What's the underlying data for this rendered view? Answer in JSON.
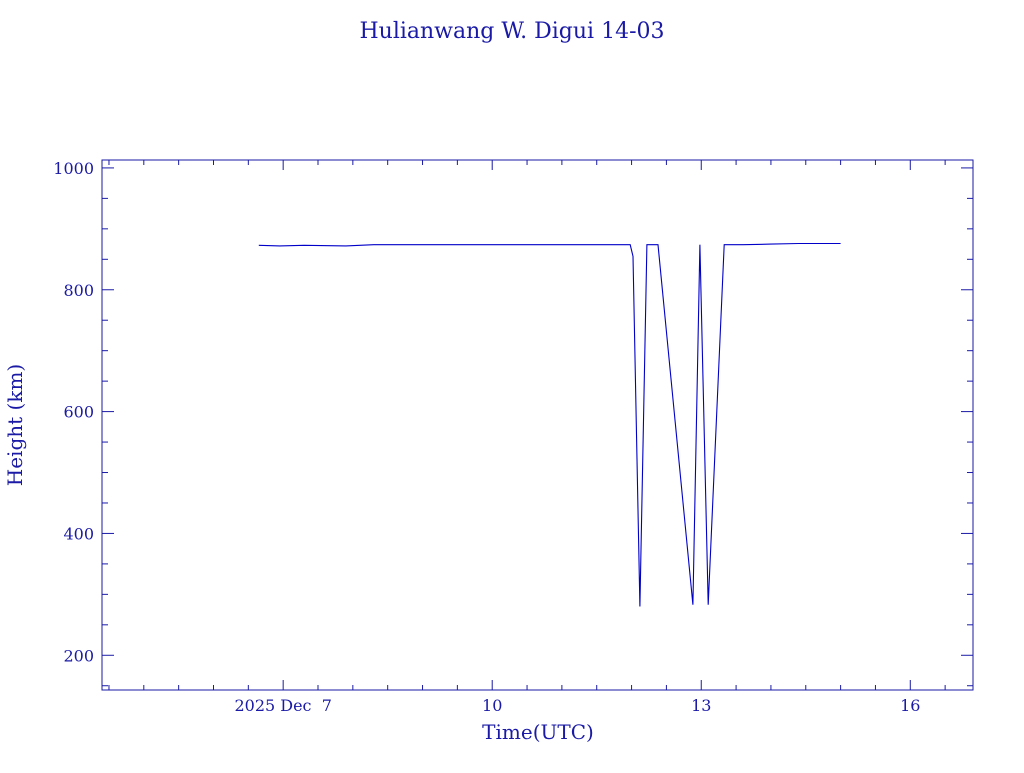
{
  "chart_data": {
    "type": "line",
    "title": "Hulianwang W. Digui 14-03",
    "xlabel": "Time(UTC)",
    "ylabel": "Height (km)",
    "x_unit": "days (Dec 2025)",
    "xlim": [
      4.4,
      16.9
    ],
    "ylim": [
      143,
      1013
    ],
    "x_ticks": [
      {
        "value": 7,
        "label": "2025 Dec  7"
      },
      {
        "value": 10,
        "label": "10"
      },
      {
        "value": 13,
        "label": "13"
      },
      {
        "value": 16,
        "label": "16"
      }
    ],
    "y_ticks": [
      {
        "value": 200,
        "label": "200"
      },
      {
        "value": 400,
        "label": "400"
      },
      {
        "value": 600,
        "label": "600"
      },
      {
        "value": 800,
        "label": "800"
      },
      {
        "value": 1000,
        "label": "1000"
      }
    ],
    "grid": false,
    "colors": {
      "foreground": "#1a1aa6",
      "line": "#0000c8",
      "background": "#ffffff"
    },
    "series": [
      {
        "x": [
          6.65,
          6.95,
          7.3,
          7.9,
          8.3,
          8.6,
          9.2,
          10.0,
          11.0,
          11.98,
          12.02,
          12.12,
          12.22,
          12.38,
          12.88,
          12.98,
          13.1,
          13.33,
          13.6,
          14.0,
          14.4,
          15.0
        ],
        "values": [
          873,
          872,
          873,
          872,
          874,
          874,
          874,
          874,
          874,
          874,
          855,
          280,
          874,
          874,
          283,
          874,
          283,
          874,
          874,
          875,
          876,
          876
        ]
      }
    ]
  }
}
